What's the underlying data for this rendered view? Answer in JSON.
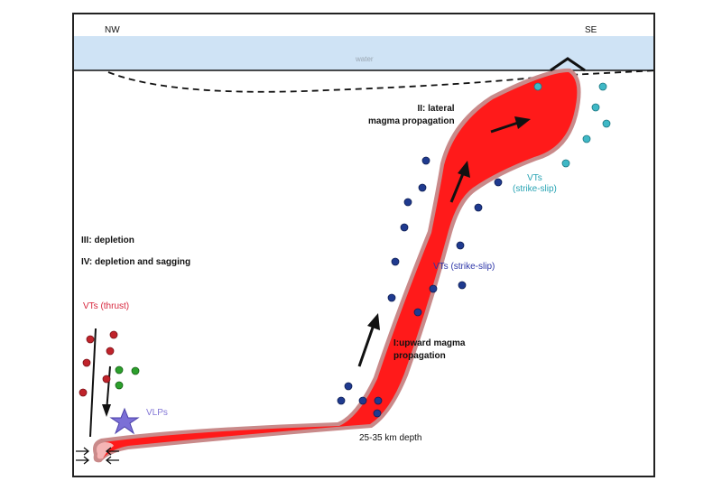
{
  "labels": {
    "nw": "NW",
    "se": "SE",
    "water": "water",
    "stage2": "II: lateral\nmagma propagation",
    "stage3": "III: depletion",
    "stage4": "IV: depletion and sagging",
    "vts_thrust": "VTs (thrust)",
    "vlps": "VLPs",
    "vts_strike_slip_mid": "VTs (strike-slip)",
    "vts_strike_slip_top": "VTs\n(strike-slip)",
    "stage1": "I:upward magma\npropagation",
    "depth": "25-35 km depth"
  },
  "colors": {
    "water": "#cfe3f5",
    "magma": "#ff1a1a",
    "magma_outline": "#c98a8a",
    "deep_end": "#f5b5b5",
    "vt_thrust": "#c0232b",
    "green_event": "#2ca02c",
    "vt_strike_slip": "#1f3a8f",
    "vt_strike_slip_top": "#3fb8c6",
    "vlp_star": "#7b6fd6"
  }
}
